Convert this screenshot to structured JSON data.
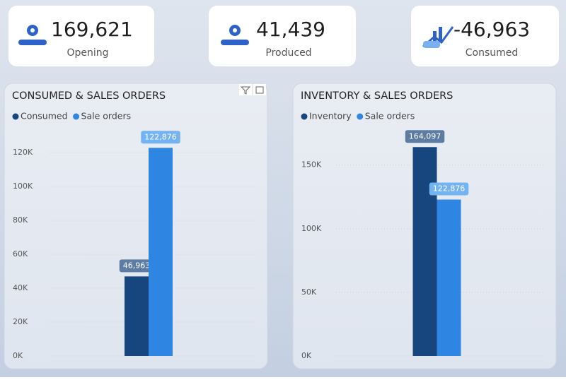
{
  "kpis": [
    {
      "value": "169,621",
      "label": "Opening"
    },
    {
      "value": "41,439",
      "label": "Produced"
    },
    {
      "value": "-46,963",
      "label": "Consumed"
    }
  ],
  "chart_data": [
    {
      "type": "bar",
      "title": "CONSUMED & SALES ORDERS",
      "categories": [
        null
      ],
      "series": [
        {
          "name": "Consumed",
          "color": "#17467f",
          "values": [
            46963
          ],
          "value_labels": [
            "46,963"
          ],
          "label_color": "#5d7ca4"
        },
        {
          "name": "Sale orders",
          "color": "#2f86e2",
          "values": [
            122876
          ],
          "value_labels": [
            "122,876"
          ],
          "label_color": "#74b3f1"
        }
      ],
      "ylim": [
        0,
        133000
      ],
      "yticks": [
        {
          "value": 0,
          "label": "0K"
        },
        {
          "value": 20000,
          "label": "20K"
        },
        {
          "value": 40000,
          "label": "40K"
        },
        {
          "value": 60000,
          "label": "60K"
        },
        {
          "value": 80000,
          "label": "80K"
        },
        {
          "value": 100000,
          "label": "100K"
        },
        {
          "value": 120000,
          "label": "120K"
        }
      ],
      "grid": true
    },
    {
      "type": "bar",
      "title": "INVENTORY & SALES ORDERS",
      "categories": [
        null
      ],
      "series": [
        {
          "name": "Inventory",
          "color": "#17467f",
          "values": [
            164097
          ],
          "value_labels": [
            "164,097"
          ],
          "label_color": "#5d7ca4"
        },
        {
          "name": "Sale orders",
          "color": "#2f86e2",
          "values": [
            122876
          ],
          "value_labels": [
            "122,876"
          ],
          "label_color": "#74b3f1"
        }
      ],
      "ylim": [
        0,
        177000
      ],
      "yticks": [
        {
          "value": 0,
          "label": "0K"
        },
        {
          "value": 50000,
          "label": "50K"
        },
        {
          "value": 100000,
          "label": "100K"
        },
        {
          "value": 150000,
          "label": "150K"
        }
      ],
      "grid": true
    }
  ]
}
